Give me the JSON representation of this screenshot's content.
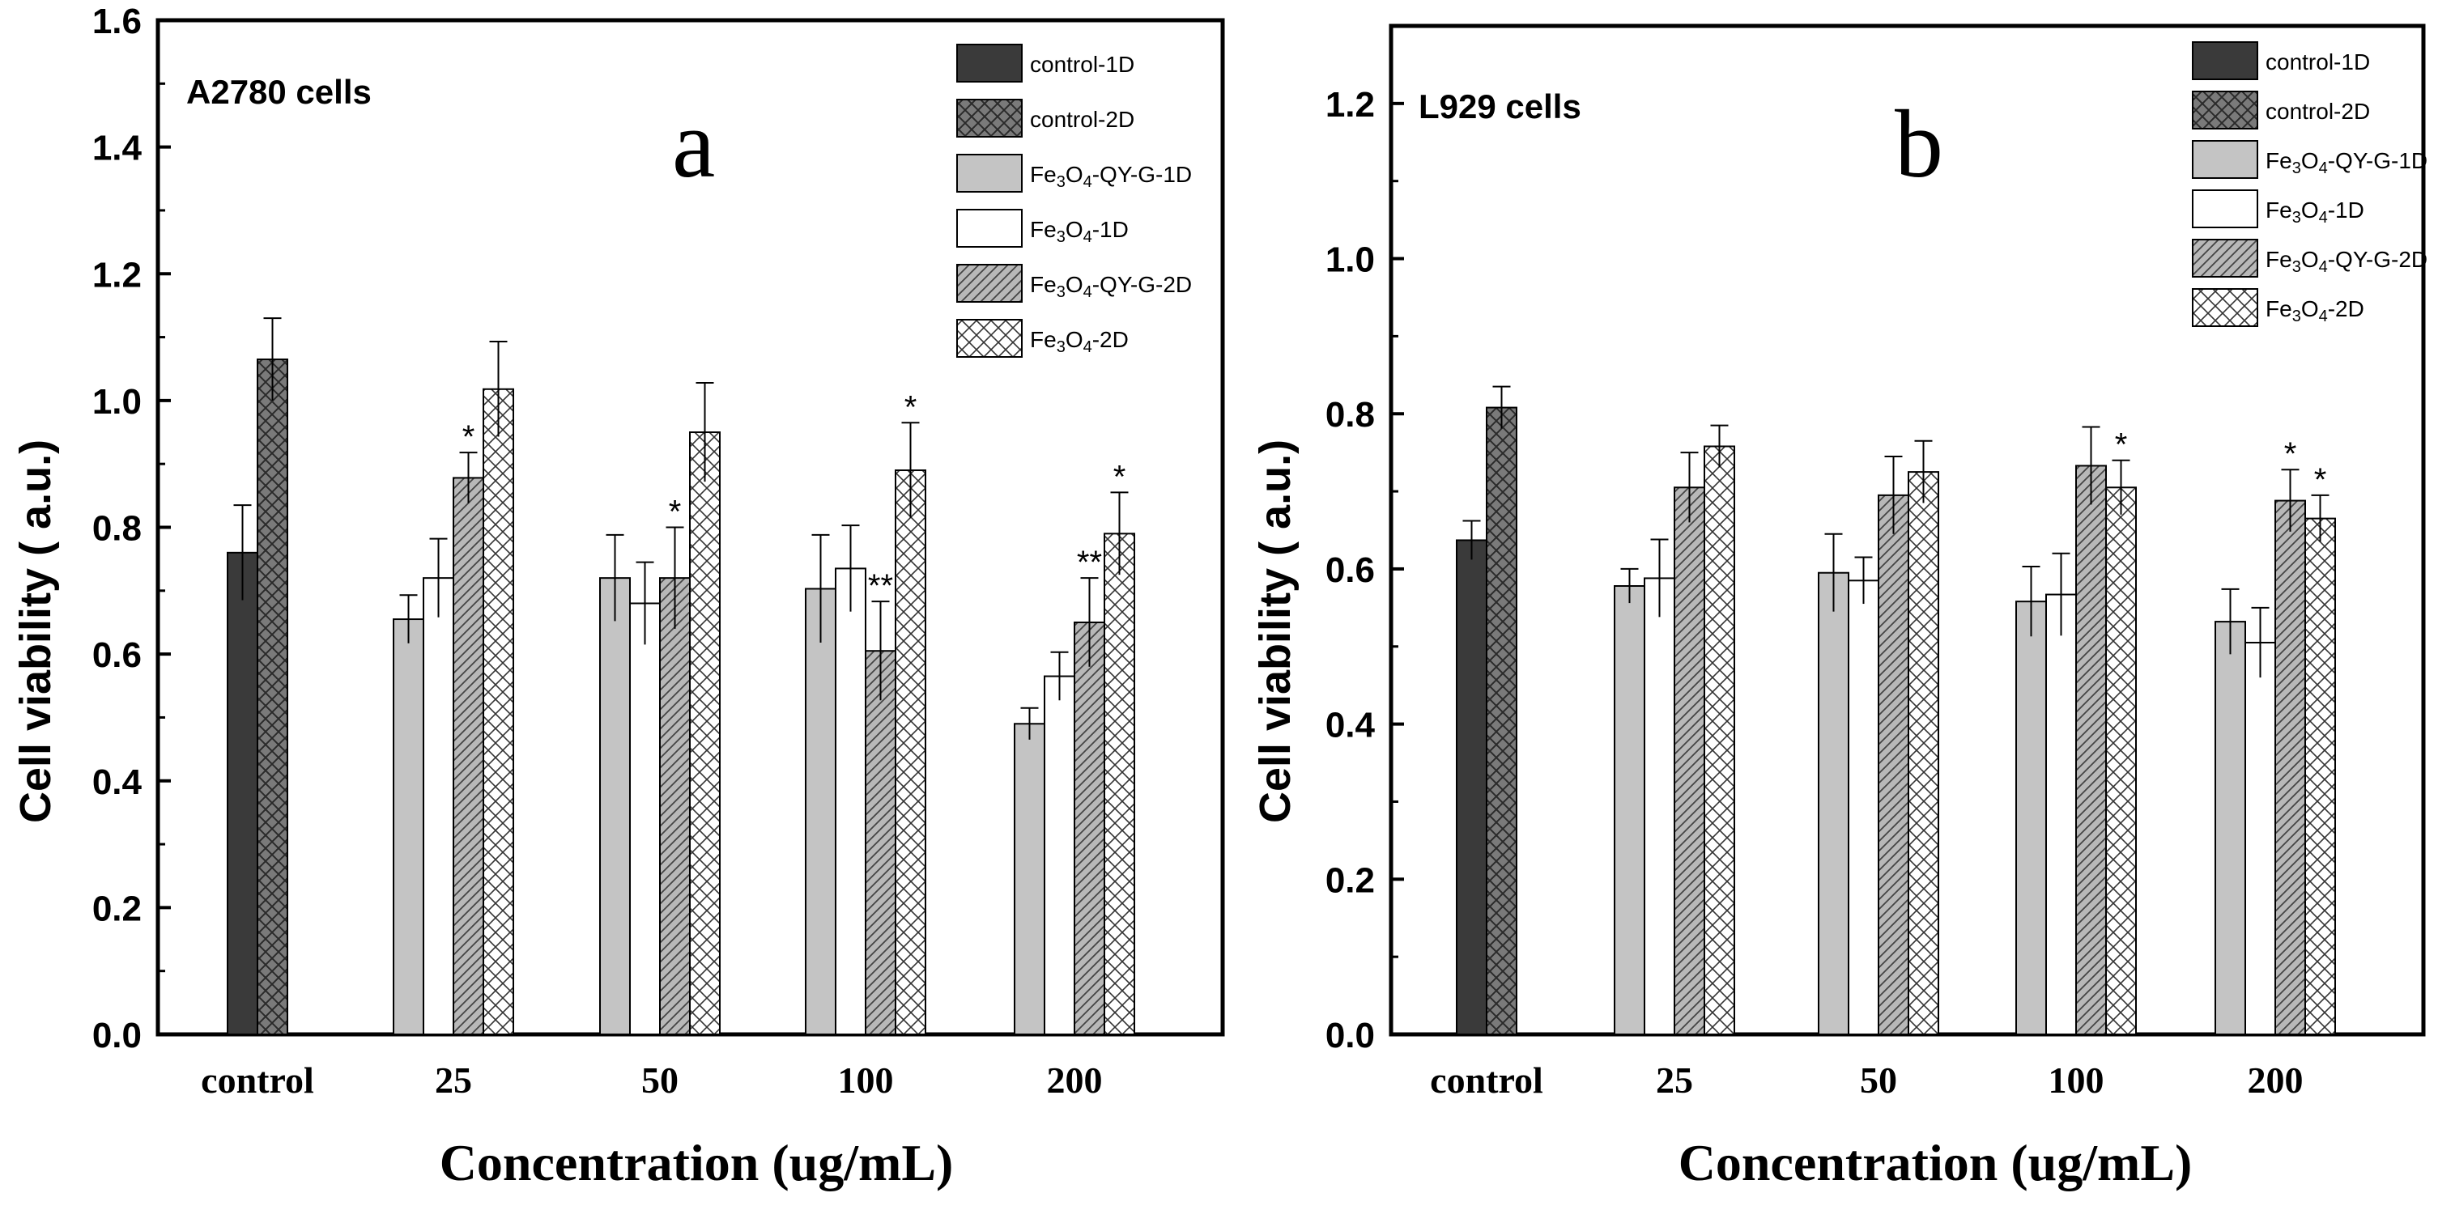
{
  "figure": {
    "xlabel": "Concentration (ug/mL)",
    "ylabel": "Cell viability ( a.u.)"
  },
  "legend": {
    "items": [
      {
        "key": "control-1D",
        "base": "control-",
        "sub": "",
        "suffix": "1D"
      },
      {
        "key": "control-2D",
        "base": "control-",
        "sub": "",
        "suffix": "2D"
      },
      {
        "key": "Fe3O4-QY-G-1D",
        "base": "Fe",
        "sub": "3",
        "mid": "O",
        "sub2": "4",
        "suffix": "-QY-G-1D"
      },
      {
        "key": "Fe3O4-1D",
        "base": "Fe",
        "sub": "3",
        "mid": "O",
        "sub2": "4",
        "suffix": "-1D"
      },
      {
        "key": "Fe3O4-QY-G-2D",
        "base": "Fe",
        "sub": "3",
        "mid": "O",
        "sub2": "4",
        "suffix": "-QY-G-2D"
      },
      {
        "key": "Fe3O4-2D",
        "base": "Fe",
        "sub": "3",
        "mid": "O",
        "sub2": "4",
        "suffix": "-2D"
      }
    ]
  },
  "colors": {
    "control1D": "#3a3a3a",
    "control2D": "#7a7a7a",
    "qyg1D": "#c4c4c4",
    "fe1D": "#ffffff",
    "qyg2D": "#b8b8b8",
    "fe2D": "#ffffff"
  },
  "chart_data": [
    {
      "type": "bar",
      "panel": "a",
      "title": "A2780 cells",
      "xlabel": "Concentration (ug/mL)",
      "ylabel": "Cell viability ( a.u.)",
      "ylim": [
        0,
        1.6
      ],
      "yticks": [
        "0.0",
        "0.2",
        "0.4",
        "0.6",
        "0.8",
        "1.0",
        "1.2",
        "1.4",
        "1.6"
      ],
      "categories": [
        "control",
        "25",
        "50",
        "100",
        "200"
      ],
      "series": [
        {
          "name": "control-1D",
          "values": [
            0.76,
            null,
            null,
            null,
            null
          ],
          "errors": [
            0.075,
            null,
            null,
            null,
            null
          ]
        },
        {
          "name": "control-2D",
          "values": [
            1.065,
            null,
            null,
            null,
            null
          ],
          "errors": [
            0.065,
            null,
            null,
            null,
            null
          ]
        },
        {
          "name": "Fe3O4-QY-G-1D",
          "values": [
            null,
            0.655,
            0.72,
            0.703,
            0.49
          ],
          "errors": [
            null,
            0.038,
            0.068,
            0.085,
            0.025
          ]
        },
        {
          "name": "Fe3O4-1D",
          "values": [
            null,
            0.72,
            0.68,
            0.735,
            0.565
          ],
          "errors": [
            null,
            0.062,
            0.065,
            0.068,
            0.038
          ]
        },
        {
          "name": "Fe3O4-QY-G-2D",
          "values": [
            null,
            0.878,
            0.72,
            0.605,
            0.65
          ],
          "errors": [
            null,
            0.04,
            0.08,
            0.078,
            0.07
          ]
        },
        {
          "name": "Fe3O4-2D",
          "values": [
            null,
            1.018,
            0.95,
            0.89,
            0.79
          ],
          "errors": [
            null,
            0.075,
            0.078,
            0.075,
            0.065
          ]
        }
      ],
      "annotations": [
        {
          "text": "*",
          "category": "25",
          "series": "Fe3O4-QY-G-2D"
        },
        {
          "text": "*",
          "category": "50",
          "series": "Fe3O4-QY-G-2D"
        },
        {
          "text": "**",
          "category": "100",
          "series": "Fe3O4-QY-G-2D"
        },
        {
          "text": "*",
          "category": "100",
          "series": "Fe3O4-2D"
        },
        {
          "text": "**",
          "category": "200",
          "series": "Fe3O4-QY-G-2D"
        },
        {
          "text": "*",
          "category": "200",
          "series": "Fe3O4-2D"
        }
      ]
    },
    {
      "type": "bar",
      "panel": "b",
      "title": "L929 cells",
      "xlabel": "Concentration (ug/mL)",
      "ylabel": "Cell viability ( a.u.)",
      "ylim": [
        0,
        1.3
      ],
      "yticks": [
        "0.0",
        "0.2",
        "0.4",
        "0.6",
        "0.8",
        "1.0",
        "1.2"
      ],
      "categories": [
        "control",
        "25",
        "50",
        "100",
        "200"
      ],
      "series": [
        {
          "name": "control-1D",
          "values": [
            0.637,
            null,
            null,
            null,
            null
          ],
          "errors": [
            0.025,
            null,
            null,
            null,
            null
          ]
        },
        {
          "name": "control-2D",
          "values": [
            0.808,
            null,
            null,
            null,
            null
          ],
          "errors": [
            0.027,
            null,
            null,
            null,
            null
          ]
        },
        {
          "name": "Fe3O4-QY-G-1D",
          "values": [
            null,
            0.578,
            0.595,
            0.558,
            0.532
          ],
          "errors": [
            null,
            0.022,
            0.05,
            0.045,
            0.042
          ]
        },
        {
          "name": "Fe3O4-1D",
          "values": [
            null,
            0.588,
            0.585,
            0.567,
            0.505
          ],
          "errors": [
            null,
            0.05,
            0.03,
            0.053,
            0.045
          ]
        },
        {
          "name": "Fe3O4-QY-G-2D",
          "values": [
            null,
            0.705,
            0.695,
            0.733,
            0.688
          ],
          "errors": [
            null,
            0.045,
            0.05,
            0.05,
            0.04
          ]
        },
        {
          "name": "Fe3O4-2D",
          "values": [
            null,
            0.758,
            0.725,
            0.705,
            0.665
          ],
          "errors": [
            null,
            0.027,
            0.04,
            0.035,
            0.03
          ]
        }
      ],
      "annotations": [
        {
          "text": "*",
          "category": "100",
          "series": "Fe3O4-2D"
        },
        {
          "text": "*",
          "category": "200",
          "series": "Fe3O4-QY-G-2D"
        },
        {
          "text": "*",
          "category": "200",
          "series": "Fe3O4-2D"
        }
      ]
    }
  ]
}
